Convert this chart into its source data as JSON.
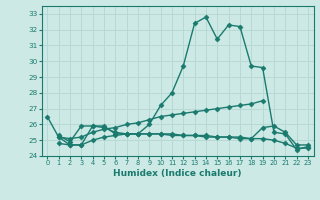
{
  "title": "",
  "xlabel": "Humidex (Indice chaleur)",
  "ylabel": "",
  "bg_color": "#cce9e5",
  "line_color": "#1a7a6e",
  "grid_color": "#b8d8d4",
  "xlim": [
    -0.5,
    23.5
  ],
  "ylim": [
    24,
    33.5
  ],
  "yticks": [
    24,
    25,
    26,
    27,
    28,
    29,
    30,
    31,
    32,
    33
  ],
  "xticks": [
    0,
    1,
    2,
    3,
    4,
    5,
    6,
    7,
    8,
    9,
    10,
    11,
    12,
    13,
    14,
    15,
    16,
    17,
    18,
    19,
    20,
    21,
    22,
    23
  ],
  "series": [
    {
      "x": [
        0,
        1,
        2,
        3,
        4,
        5,
        6,
        7,
        8,
        9,
        10,
        11,
        12,
        13,
        14,
        15,
        16,
        17,
        18,
        19,
        20,
        21,
        22,
        23
      ],
      "y": [
        26.5,
        25.2,
        24.7,
        24.7,
        25.9,
        25.9,
        25.4,
        25.4,
        25.4,
        26.0,
        27.2,
        28.0,
        29.7,
        32.4,
        32.8,
        31.4,
        32.3,
        32.2,
        29.7,
        29.6,
        25.5,
        25.4,
        24.4,
        24.6
      ]
    },
    {
      "x": [
        1,
        2,
        3,
        4,
        5,
        6,
        7,
        8,
        9,
        10,
        11,
        12,
        13,
        14,
        15,
        16,
        17,
        18,
        19
      ],
      "y": [
        25.2,
        25.1,
        25.2,
        25.5,
        25.7,
        25.8,
        26.0,
        26.1,
        26.3,
        26.5,
        26.6,
        26.7,
        26.8,
        26.9,
        27.0,
        27.1,
        27.2,
        27.3,
        27.5
      ]
    },
    {
      "x": [
        1,
        2,
        3,
        4,
        5,
        6,
        7,
        8,
        9,
        10,
        11,
        12,
        13,
        14,
        15,
        16,
        17,
        18,
        19,
        20,
        21,
        22,
        23
      ],
      "y": [
        25.3,
        24.9,
        25.9,
        25.9,
        25.8,
        25.5,
        25.4,
        25.4,
        25.4,
        25.4,
        25.4,
        25.3,
        25.3,
        25.3,
        25.2,
        25.2,
        25.2,
        25.1,
        25.8,
        25.9,
        25.5,
        24.7,
        24.7
      ]
    },
    {
      "x": [
        1,
        2,
        3,
        4,
        5,
        6,
        7,
        8,
        9,
        10,
        11,
        12,
        13,
        14,
        15,
        16,
        17,
        18,
        19,
        20,
        21,
        22,
        23
      ],
      "y": [
        24.8,
        24.7,
        24.7,
        25.0,
        25.2,
        25.3,
        25.4,
        25.4,
        25.4,
        25.4,
        25.3,
        25.3,
        25.3,
        25.2,
        25.2,
        25.2,
        25.1,
        25.1,
        25.1,
        25.0,
        24.8,
        24.5,
        24.5
      ]
    }
  ]
}
